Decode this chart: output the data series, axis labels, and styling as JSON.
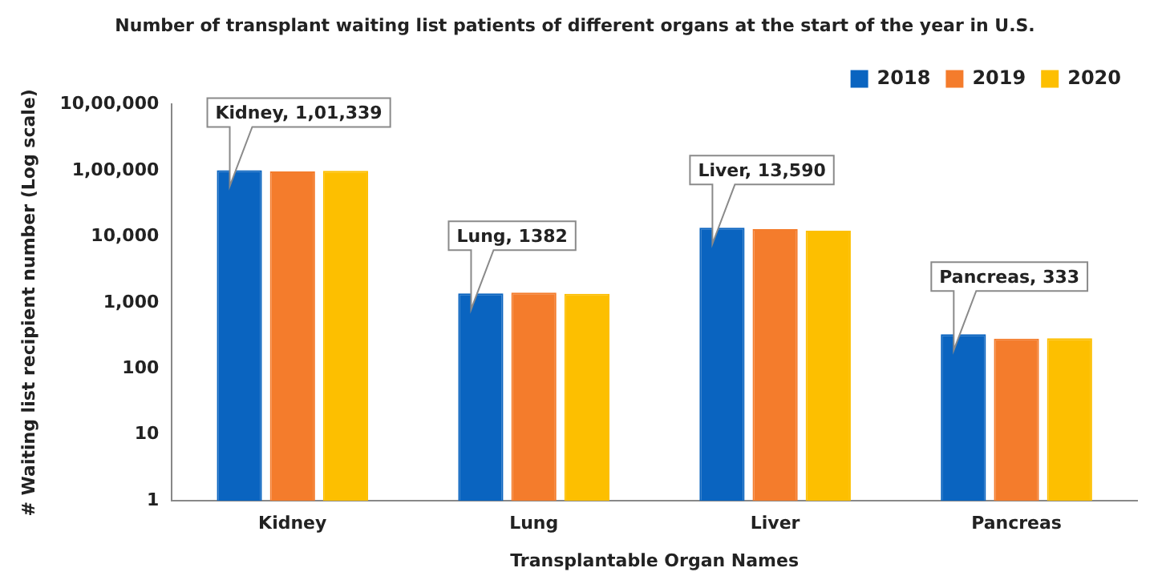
{
  "chart_data": {
    "type": "bar",
    "title": "Number of transplant waiting list patients of different organs at the start of the year in U.S.",
    "xlabel": "Transplantable Organ Names",
    "ylabel": "# Waiting list recipient number (Log scale)",
    "categories": [
      "Kidney",
      "Lung",
      "Liver",
      "Pancreas"
    ],
    "series": [
      {
        "name": "2018",
        "color": "#0a64c0",
        "values": [
          101339,
          1382,
          13590,
          333
        ]
      },
      {
        "name": "2019",
        "color": "#f47c2c",
        "values": [
          97000,
          1420,
          13000,
          285
        ]
      },
      {
        "name": "2020",
        "color": "#fdbf00",
        "values": [
          99000,
          1360,
          12300,
          290
        ]
      }
    ],
    "log": "y",
    "ylim": [
      1,
      1000000
    ],
    "yticks": [
      1,
      10,
      100,
      {
        "value": 1000,
        "label": "1,000"
      },
      {
        "value": 10000,
        "label": "10,000"
      },
      {
        "value": 100000,
        "label": "1,00,000"
      },
      {
        "value": 1000000,
        "label": "10,00,000"
      }
    ],
    "grid": false,
    "legend": "top right",
    "annotations": [
      {
        "text": "Kidney, 1,01,339",
        "x": "Kidney",
        "y": 101339
      },
      {
        "text": "Lung, 1382",
        "x": "Lung",
        "y": 1382
      },
      {
        "text": "Liver, 13,590",
        "x": "Liver",
        "y": 13590
      },
      {
        "text": "Pancreas, 333",
        "x": "Pancreas",
        "y": 333
      }
    ]
  }
}
